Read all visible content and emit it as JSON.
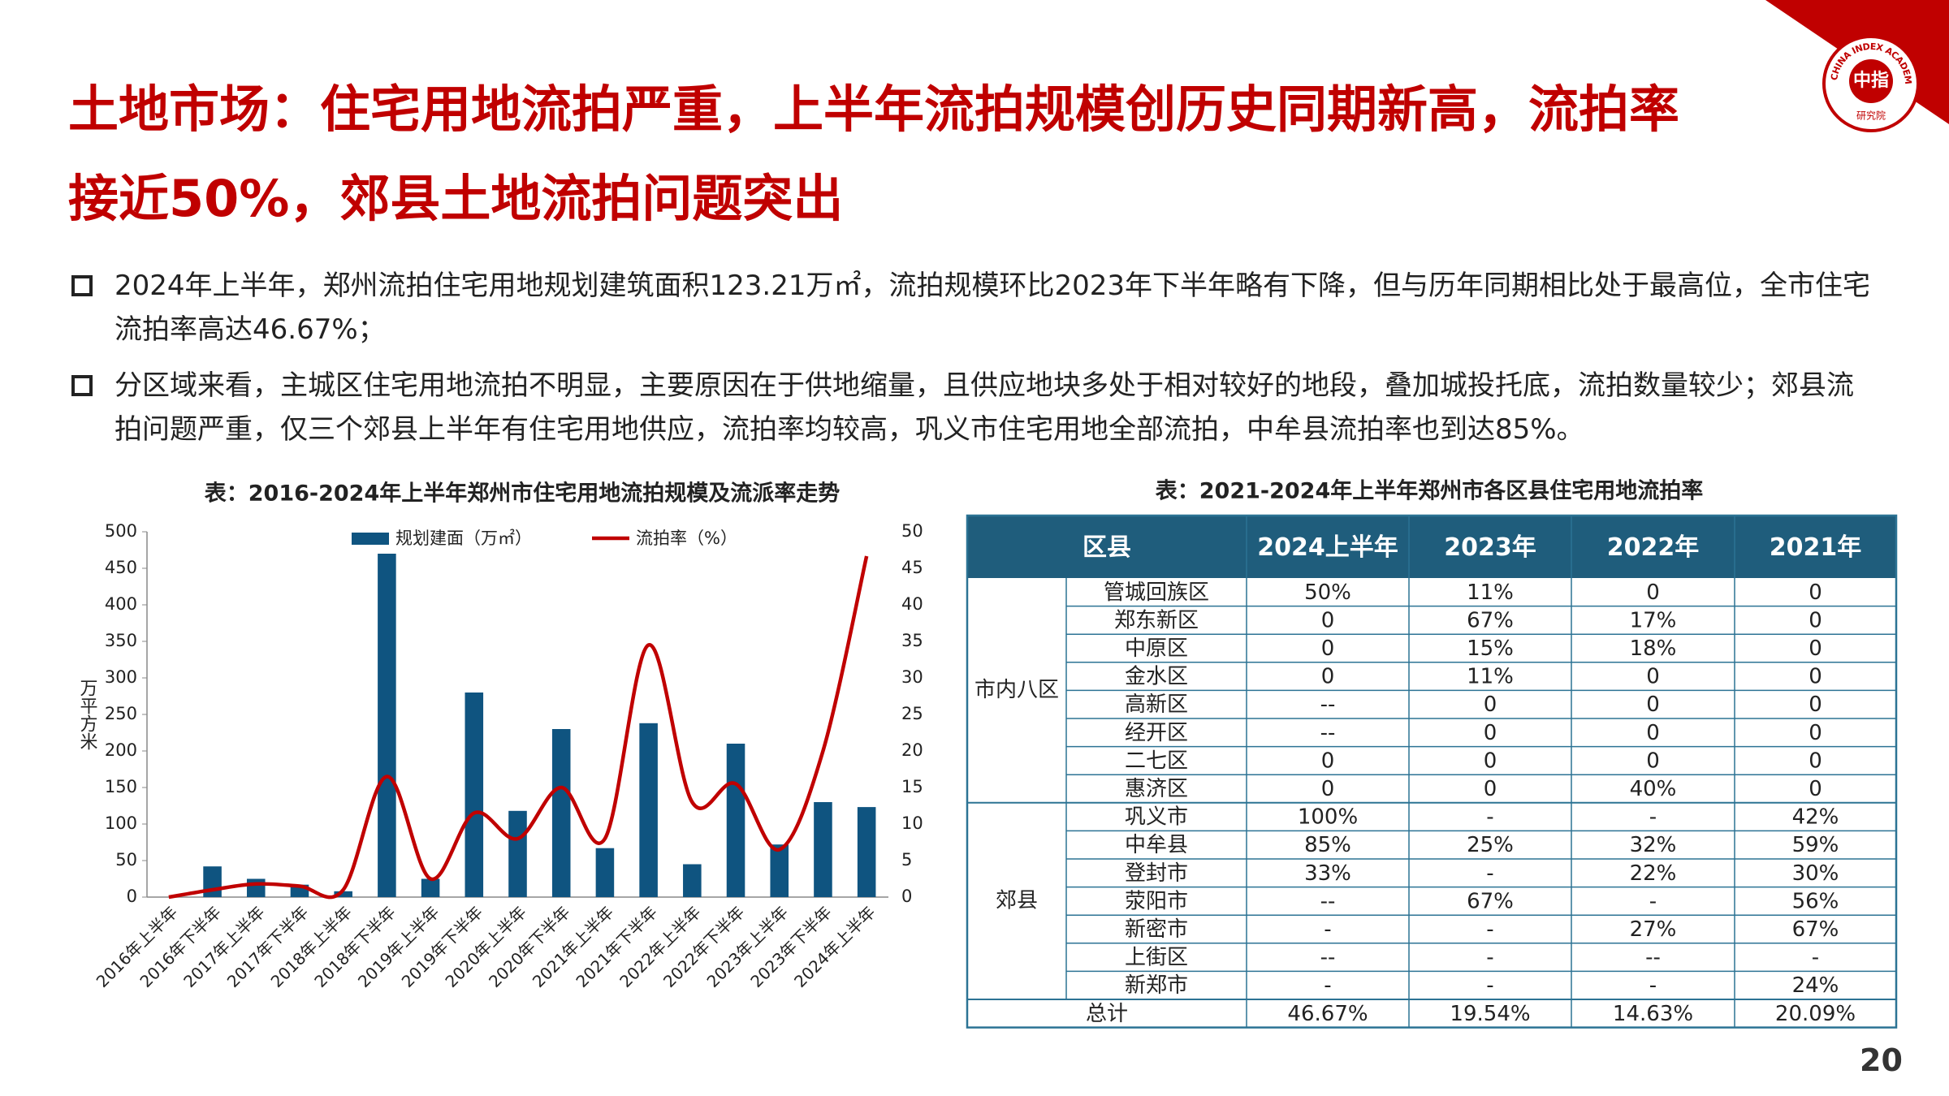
{
  "header": {
    "title": "土地市场：住宅用地流拍严重，上半年流拍规模创历史同期新高，流拍率接近50%，郊县土地流拍问题突出"
  },
  "logo": {
    "name": "中指",
    "english": "CHINA INDEX ACADEMY",
    "sub": "研究院"
  },
  "bullets": [
    "2024年上半年，郑州流拍住宅用地规划建筑面积123.21万㎡，流拍规模环比2023年下半年略有下降，但与历年同期相比处于最高位，全市住宅流拍率高达46.67%；",
    "分区域来看，主城区住宅用地流拍不明显，主要原因在于供地缩量，且供应地块多处于相对较好的地段，叠加城投托底，流拍数量较少；郊县流拍问题严重，仅三个郊县上半年有住宅用地供应，流拍率均较高，巩义市住宅用地全部流拍，中牟县流拍率也到达85%。"
  ],
  "chart_data": {
    "type": "bar",
    "title": "表：2016-2024年上半年郑州市住宅用地流拍规模及流派率走势",
    "y_label": "万平方米",
    "categories": [
      "2016年上半年",
      "2016年下半年",
      "2017年上半年",
      "2017年下半年",
      "2018年上半年",
      "2018年下半年",
      "2019年上半年",
      "2019年下半年",
      "2020年上半年",
      "2020年下半年",
      "2021年上半年",
      "2021年下半年",
      "2022年上半年",
      "2022年下半年",
      "2023年上半年",
      "2023年下半年",
      "2024年上半年"
    ],
    "series": [
      {
        "name": "规划建面（万㎡）",
        "type": "bar",
        "color": "#0f5480",
        "values": [
          0,
          42,
          25,
          17,
          8,
          470,
          25,
          280,
          118,
          230,
          67,
          238,
          45,
          210,
          72,
          130,
          123.21
        ]
      },
      {
        "name": "流拍率（%）",
        "type": "line",
        "axis": "y2",
        "color": "#c00000",
        "values": [
          0,
          1,
          1.8,
          1.5,
          1,
          16.5,
          2.5,
          11.5,
          8,
          15,
          8,
          34.5,
          13,
          15.5,
          6.5,
          20,
          46.67
        ]
      }
    ],
    "ylim": [
      0,
      500
    ],
    "yticks": [
      0,
      50,
      100,
      150,
      200,
      250,
      300,
      350,
      400,
      450,
      500
    ],
    "y2lim": [
      0,
      50
    ],
    "y2ticks": [
      0,
      5,
      10,
      15,
      20,
      25,
      30,
      35,
      40,
      45,
      50
    ],
    "grid": false
  },
  "table": {
    "title": "表：2021-2024年上半年郑州市各区县住宅用地流拍率",
    "header": [
      "区县",
      "2024上半年",
      "2023年",
      "2022年",
      "2021年"
    ],
    "groups": [
      {
        "name": "市内八区",
        "rows": [
          [
            "管城回族区",
            "50%",
            "11%",
            "0",
            "0"
          ],
          [
            "郑东新区",
            "0",
            "67%",
            "17%",
            "0"
          ],
          [
            "中原区",
            "0",
            "15%",
            "18%",
            "0"
          ],
          [
            "金水区",
            "0",
            "11%",
            "0",
            "0"
          ],
          [
            "高新区",
            "--",
            "0",
            "0",
            "0"
          ],
          [
            "经开区",
            "--",
            "0",
            "0",
            "0"
          ],
          [
            "二七区",
            "0",
            "0",
            "0",
            "0"
          ],
          [
            "惠济区",
            "0",
            "0",
            "40%",
            "0"
          ]
        ]
      },
      {
        "name": "郊县",
        "rows": [
          [
            "巩义市",
            "100%",
            "-",
            "-",
            "42%"
          ],
          [
            "中牟县",
            "85%",
            "25%",
            "32%",
            "59%"
          ],
          [
            "登封市",
            "33%",
            "-",
            "22%",
            "30%"
          ],
          [
            "荥阳市",
            "--",
            "67%",
            "-",
            "56%"
          ],
          [
            "新密市",
            "-",
            "-",
            "27%",
            "67%"
          ],
          [
            "上街区",
            "--",
            "-",
            "--",
            "-"
          ],
          [
            "新郑市",
            "-",
            "-",
            "-",
            "24%"
          ]
        ]
      }
    ],
    "total": [
      "总计",
      "46.67%",
      "19.54%",
      "14.63%",
      "20.09%"
    ]
  },
  "page_number": "20"
}
